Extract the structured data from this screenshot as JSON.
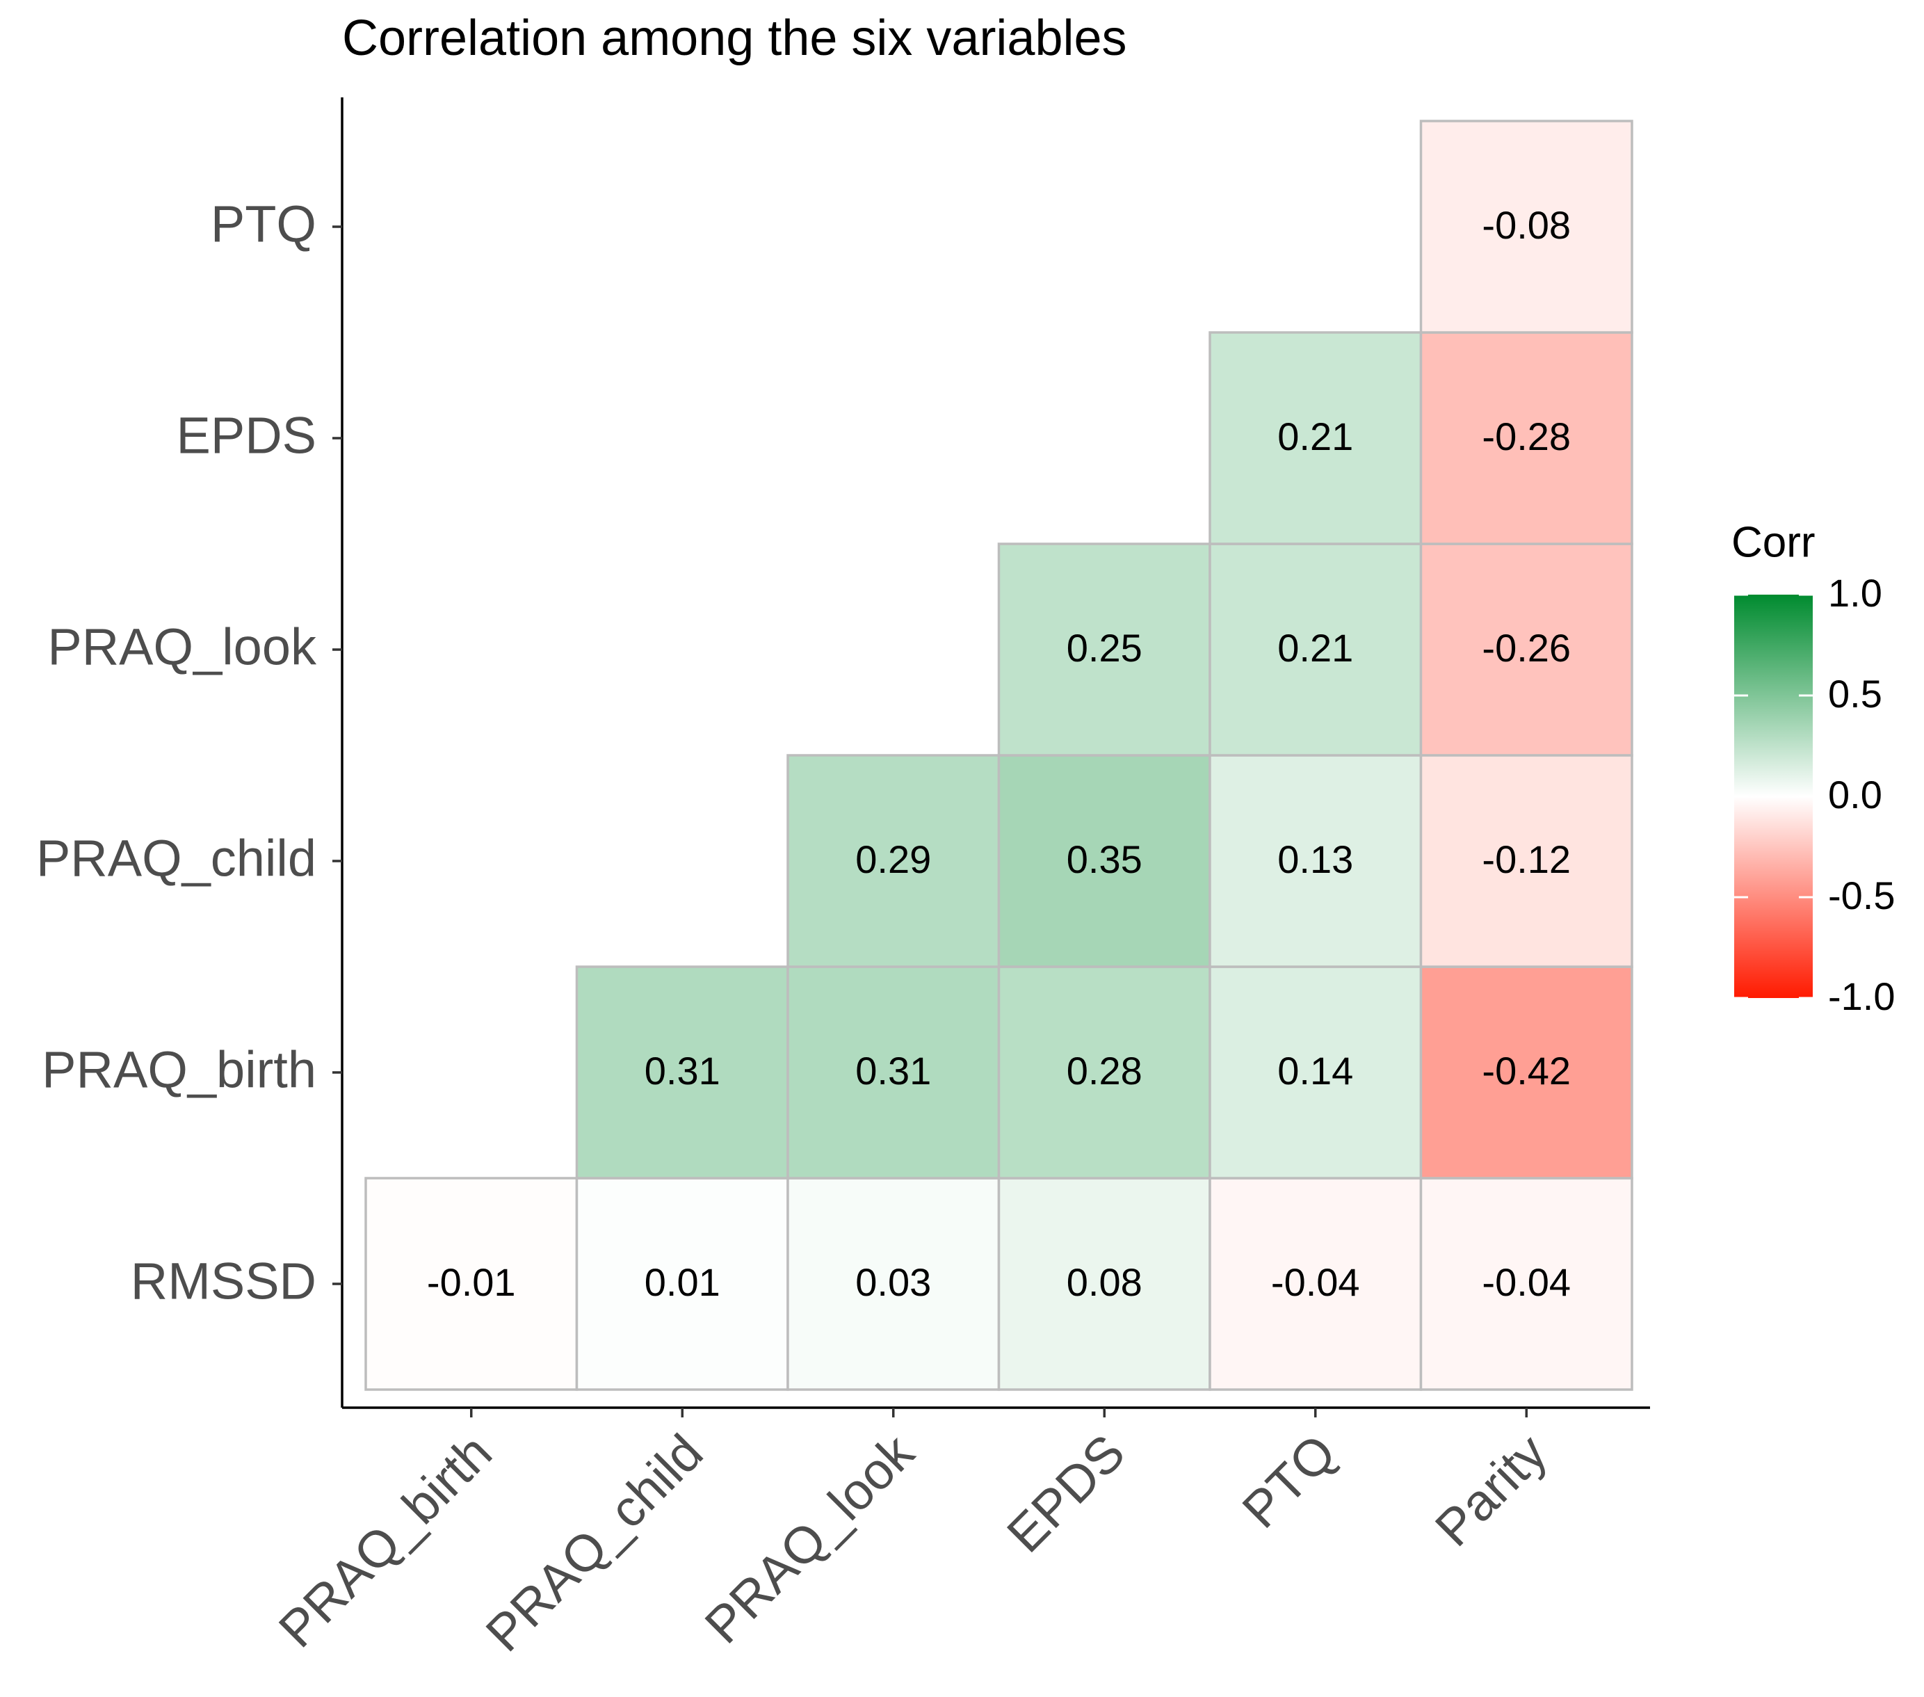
{
  "chart_data": {
    "type": "heatmap",
    "title": "Correlation among the six variables",
    "x": [
      "PRAQ_birth",
      "PRAQ_child",
      "PRAQ_look",
      "EPDS",
      "PTQ",
      "Parity"
    ],
    "y": [
      "RMSSD",
      "PRAQ_birth",
      "PRAQ_child",
      "PRAQ_look",
      "EPDS",
      "PTQ"
    ],
    "values": [
      [
        -0.01,
        0.01,
        0.03,
        0.08,
        -0.04,
        -0.04
      ],
      [
        null,
        0.31,
        0.31,
        0.28,
        0.14,
        -0.42
      ],
      [
        null,
        null,
        0.29,
        0.35,
        0.13,
        -0.12
      ],
      [
        null,
        null,
        null,
        0.25,
        0.21,
        -0.26
      ],
      [
        null,
        null,
        null,
        null,
        0.21,
        -0.28
      ],
      [
        null,
        null,
        null,
        null,
        null,
        -0.08
      ]
    ],
    "legend_title": "Corr",
    "clim": [
      -1,
      1
    ],
    "cticks": [
      {
        "value": 1,
        "label": "1.0"
      },
      {
        "value": 0.5,
        "label": "0.5"
      },
      {
        "value": 0,
        "label": "0.0"
      },
      {
        "value": -0.5,
        "label": "-0.5"
      },
      {
        "value": -1,
        "label": "-1.0"
      }
    ],
    "colorscale": {
      "low": "#ff1a00",
      "mid": "#ffffff",
      "high": "#008b2f"
    },
    "cell_border": "#bdbdbd"
  }
}
